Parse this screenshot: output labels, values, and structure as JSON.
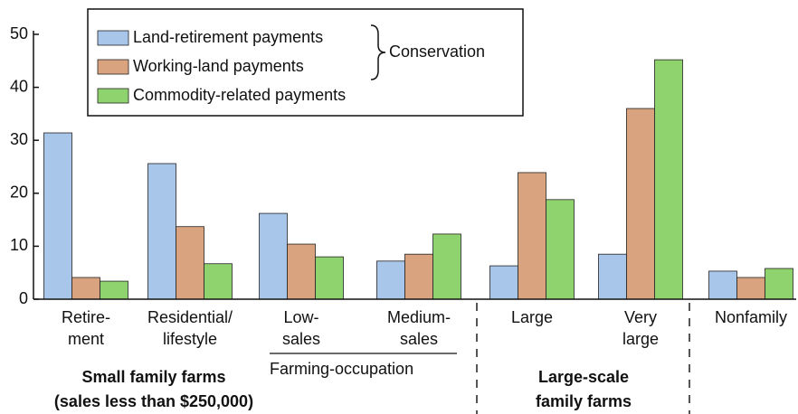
{
  "chart_data": {
    "type": "bar",
    "categories": [
      [
        "Retire-",
        "ment"
      ],
      [
        "Residential/",
        "lifestyle"
      ],
      [
        "Low-",
        "sales"
      ],
      [
        "Medium-",
        "sales"
      ],
      [
        "Large"
      ],
      [
        "Very",
        "large"
      ],
      [
        "Nonfamily"
      ]
    ],
    "series": [
      {
        "name": "Land-retirement payments",
        "color": "#a8c5ea",
        "values": [
          31.4,
          25.6,
          16.2,
          7.2,
          6.3,
          8.5,
          5.3
        ]
      },
      {
        "name": "Working-land payments",
        "color": "#d9a37f",
        "values": [
          4.1,
          13.7,
          10.4,
          8.5,
          23.9,
          36,
          4.1
        ]
      },
      {
        "name": "Commodity-related payments",
        "color": "#8fd36e",
        "values": [
          3.4,
          6.7,
          8.0,
          12.3,
          18.8,
          45.2,
          5.8
        ]
      }
    ],
    "conservation_label": "Conservation",
    "group_labels": {
      "small": [
        "Small family farms",
        "(sales less than $250,000)"
      ],
      "farming_occupation": "Farming-occupation",
      "large_scale": [
        "Large-scale",
        "family farms"
      ]
    },
    "ylim": [
      0,
      50
    ],
    "yticks": [
      0,
      10,
      20,
      30,
      40,
      50
    ]
  }
}
